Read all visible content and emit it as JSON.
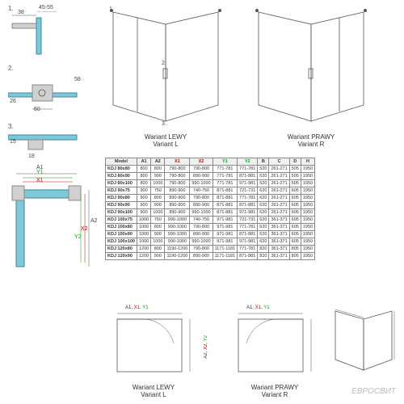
{
  "details": {
    "d1": {
      "label": "1.",
      "dim_a": "38",
      "dim_b": "45-55"
    },
    "d2": {
      "label": "2.",
      "dim_a": "58",
      "dim_b": "60",
      "dim_c": "26"
    },
    "d3": {
      "label": "3.",
      "dim_a": "15",
      "dim_b": "18"
    }
  },
  "variants": {
    "left": {
      "line1": "Wariant LEWY",
      "line2": "Variant L"
    },
    "right": {
      "line1": "Wariant PRAWY",
      "line2": "Variant R"
    }
  },
  "callouts": {
    "c1": "1.",
    "c2": "2.",
    "c3": "3."
  },
  "middle_diagram": {
    "x1": "X1",
    "y1": "Y1",
    "a1": "A1",
    "a2": "A2",
    "x2": "X2",
    "y2": "Y2"
  },
  "table": {
    "headers": [
      "Model",
      "A1",
      "A2",
      "X1",
      "X2",
      "Y1",
      "Y2",
      "B",
      "C",
      "D",
      "H"
    ],
    "header_colors": [
      "",
      "",
      "",
      "red",
      "red",
      "green",
      "green",
      "",
      "",
      "",
      ""
    ],
    "rows": [
      [
        "KDJ 80x80",
        "800",
        "800",
        "790-800",
        "790-800",
        "771-781",
        "771-781",
        "520",
        "261-271",
        "505",
        "1950"
      ],
      [
        "KDJ 80x90",
        "800",
        "900",
        "790-800",
        "890-900",
        "771-781",
        "871-881",
        "520",
        "261-271",
        "505",
        "1950"
      ],
      [
        "KDJ 80x100",
        "800",
        "1000",
        "790-800",
        "990-1000",
        "771-781",
        "971-981",
        "520",
        "261-271",
        "505",
        "1950"
      ],
      [
        "KDJ 90x75",
        "900",
        "750",
        "890-900",
        "740-750",
        "871-881",
        "721-731",
        "620",
        "261-271",
        "605",
        "1950"
      ],
      [
        "KDJ 90x80",
        "900",
        "800",
        "890-900",
        "790-800",
        "871-881",
        "771-781",
        "620",
        "261-271",
        "605",
        "1950"
      ],
      [
        "KDJ 90x90",
        "900",
        "900",
        "890-900",
        "890-900",
        "871-881",
        "871-881",
        "620",
        "261-271",
        "605",
        "1950"
      ],
      [
        "KDJ 90x100",
        "900",
        "1000",
        "890-900",
        "990-1000",
        "871-881",
        "971-981",
        "620",
        "261-271",
        "605",
        "1950"
      ],
      [
        "KDJ 100x75",
        "1000",
        "750",
        "990-1000",
        "740-750",
        "971-981",
        "721-731",
        "620",
        "361-371",
        "605",
        "1950"
      ],
      [
        "KDJ 100x80",
        "1000",
        "800",
        "990-1000",
        "790-800",
        "971-981",
        "771-781",
        "620",
        "361-371",
        "605",
        "1950"
      ],
      [
        "KDJ 100x90",
        "1000",
        "900",
        "990-1000",
        "890-900",
        "971-981",
        "871-881",
        "620",
        "361-371",
        "605",
        "1950"
      ],
      [
        "KDJ 100x100",
        "1000",
        "1000",
        "990-1000",
        "990-1000",
        "971-981",
        "971-981",
        "620",
        "361-371",
        "605",
        "1950"
      ],
      [
        "KDJ 120x80",
        "1200",
        "800",
        "1190-1200",
        "790-800",
        "1171-1181",
        "771-781",
        "820",
        "361-371",
        "805",
        "1950"
      ],
      [
        "KDJ 120x90",
        "1200",
        "900",
        "1190-1200",
        "890-900",
        "1171-1181",
        "871-881",
        "820",
        "361-371",
        "805",
        "1950"
      ]
    ]
  },
  "bottom": {
    "left": {
      "line1": "Wariant LEWY",
      "line2": "Variant L",
      "a1": "A1,",
      "x1": "X1,",
      "y1": "Y1",
      "a2": "A2,",
      "x2": "X2,",
      "y2": "Y2"
    },
    "right": {
      "line1": "Wariant PRAWY",
      "line2": "Variant R",
      "a1": "A1,",
      "x1": "X1,",
      "y1": "Y1",
      "a2": "A2,",
      "x2": "X2,",
      "y2": "Y2"
    }
  },
  "watermark": "ЕВРОСВИТ"
}
